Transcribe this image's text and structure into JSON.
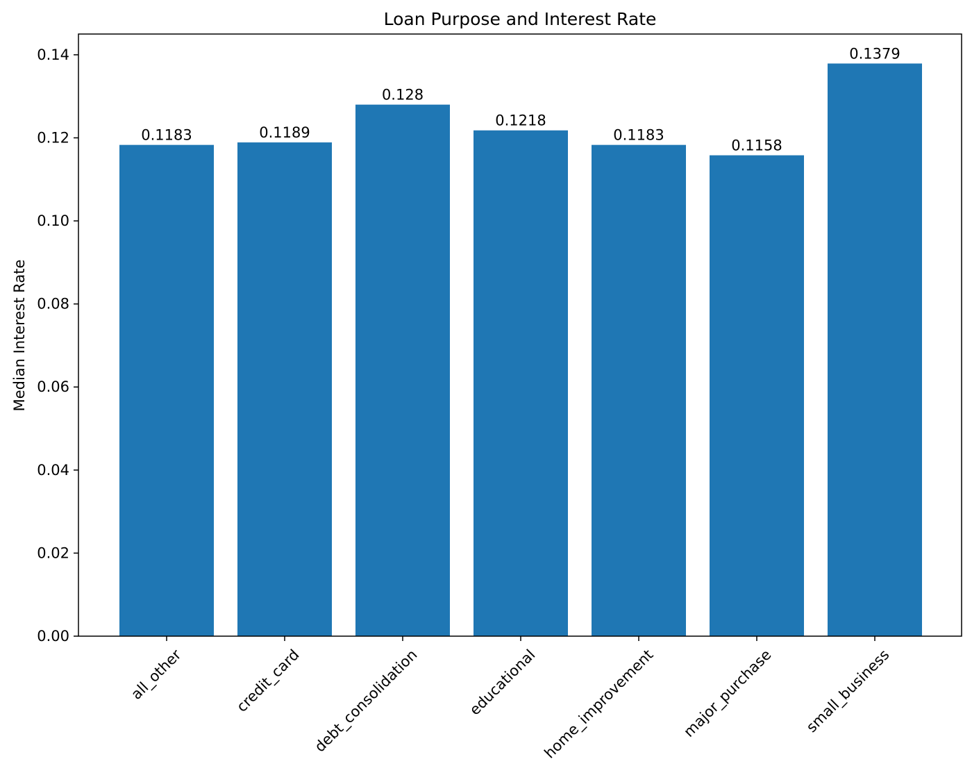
{
  "chart_data": {
    "type": "bar",
    "title": "Loan Purpose and Interest Rate",
    "xlabel": "",
    "ylabel": "Median Interest Rate",
    "categories": [
      "all_other",
      "credit_card",
      "debt_consolidation",
      "educational",
      "home_improvement",
      "major_purchase",
      "small_business"
    ],
    "values": [
      0.1183,
      0.1189,
      0.128,
      0.1218,
      0.1183,
      0.1158,
      0.1379
    ],
    "value_labels": [
      "0.1183",
      "0.1189",
      "0.128",
      "0.1218",
      "0.1183",
      "0.1158",
      "0.1379"
    ],
    "ylim": [
      0,
      0.145
    ],
    "yticks": [
      0.0,
      0.02,
      0.04,
      0.06,
      0.08,
      0.1,
      0.12,
      0.14
    ],
    "ytick_labels": [
      "0.00",
      "0.02",
      "0.04",
      "0.06",
      "0.08",
      "0.10",
      "0.12",
      "0.14"
    ],
    "bar_color": "#1f77b4",
    "grid": false,
    "legend": "none"
  }
}
